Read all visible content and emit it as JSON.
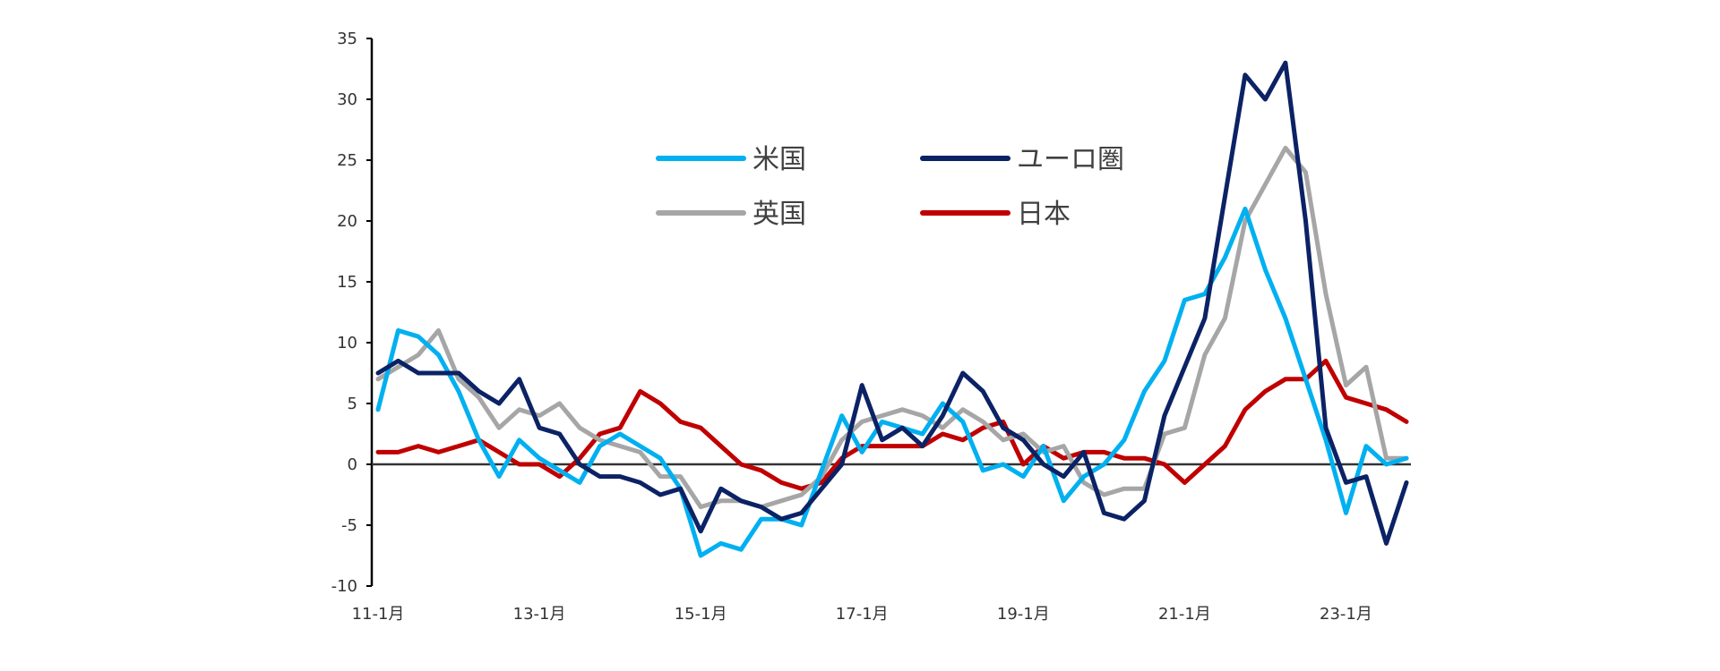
{
  "chart_data": {
    "type": "line",
    "x": [
      "11-1月",
      "11-3月",
      "11-6月",
      "11-9月",
      "12-1月",
      "12-4月",
      "12-7月",
      "12-10月",
      "13-1月",
      "13-4月",
      "13-7月",
      "13-10月",
      "14-1月",
      "14-4月",
      "14-7月",
      "14-10月",
      "15-1月",
      "15-4月",
      "15-7月",
      "15-10月",
      "16-1月",
      "16-4月",
      "16-7月",
      "16-10月",
      "17-1月",
      "17-4月",
      "17-7月",
      "17-10月",
      "18-1月",
      "18-4月",
      "18-7月",
      "18-10月",
      "19-1月",
      "19-4月",
      "19-7月",
      "19-10月",
      "20-1月",
      "20-4月",
      "20-7月",
      "20-10月",
      "21-1月",
      "21-4月",
      "21-7月",
      "21-10月",
      "22-1月",
      "22-4月",
      "22-7月",
      "22-10月",
      "23-1月",
      "23-4月",
      "23-7月",
      "23-10月"
    ],
    "x_ticks": [
      "11-1月",
      "13-1月",
      "15-1月",
      "17-1月",
      "19-1月",
      "21-1月",
      "23-1月"
    ],
    "series": [
      {
        "name": "米国",
        "color": "#00B0F0",
        "values": [
          4.5,
          11,
          10.5,
          9,
          6,
          2,
          -1,
          2,
          0.5,
          -0.5,
          -1.5,
          1.5,
          2.5,
          1.5,
          0.5,
          -2,
          -7.5,
          -6.5,
          -7,
          -4.5,
          -4.5,
          -5,
          -0.5,
          4,
          1,
          3.5,
          3,
          2.5,
          5,
          3.5,
          -0.5,
          0,
          -1,
          1.5,
          -3,
          -1,
          0,
          2,
          6,
          8.5,
          13.5,
          14,
          17,
          21,
          16,
          12,
          7,
          2,
          -4,
          1.5,
          0,
          0.5
        ]
      },
      {
        "name": "ユーロ圏",
        "color": "#0B2265",
        "values": [
          7.5,
          8.5,
          7.5,
          7.5,
          7.5,
          6,
          5,
          7,
          3,
          2.5,
          0,
          -1,
          -1,
          -1.5,
          -2.5,
          -2,
          -5.5,
          -2,
          -3,
          -3.5,
          -4.5,
          -4,
          -2,
          0,
          6.5,
          2,
          3,
          1.5,
          4,
          7.5,
          6,
          3,
          2,
          0,
          -1,
          1,
          -4,
          -4.5,
          -3,
          4,
          8,
          12,
          22,
          32,
          30,
          33,
          20,
          3,
          -1.5,
          -1,
          -6.5,
          -1.5
        ]
      },
      {
        "name": "英国",
        "color": "#A6A6A6",
        "values": [
          7,
          8,
          9,
          11,
          7,
          5.5,
          3,
          4.5,
          4,
          5,
          3,
          2,
          1.5,
          1,
          -1,
          -1,
          -3.5,
          -3,
          -3,
          -3.5,
          -3,
          -2.5,
          -1,
          2,
          3.5,
          4,
          4.5,
          4,
          3,
          4.5,
          3.5,
          2,
          2.5,
          1,
          1.5,
          -1.5,
          -2.5,
          -2,
          -2,
          2.5,
          3,
          9,
          12,
          20,
          23,
          26,
          24,
          14,
          6.5,
          8,
          0.5,
          0.5
        ]
      },
      {
        "name": "日本",
        "color": "#C00000",
        "values": [
          1,
          1,
          1.5,
          1,
          1.5,
          2,
          1,
          0,
          0,
          -1,
          0.5,
          2.5,
          3,
          6,
          5,
          3.5,
          3,
          1.5,
          0,
          -0.5,
          -1.5,
          -2,
          -1.5,
          0.5,
          1.5,
          1.5,
          1.5,
          1.5,
          2.5,
          2,
          3,
          3.5,
          0,
          1.5,
          0.5,
          1,
          1,
          0.5,
          0.5,
          0,
          -1.5,
          0,
          1.5,
          4.5,
          6,
          7,
          7,
          8.5,
          5.5,
          5,
          4.5,
          3.5
        ]
      }
    ],
    "ylim": [
      -10,
      35
    ],
    "y_ticks": [
      -10,
      -5,
      0,
      5,
      10,
      15,
      20,
      25,
      30,
      35
    ],
    "title": "",
    "xlabel": "",
    "ylabel": "",
    "grid": false,
    "legend_placement": "top-center"
  }
}
